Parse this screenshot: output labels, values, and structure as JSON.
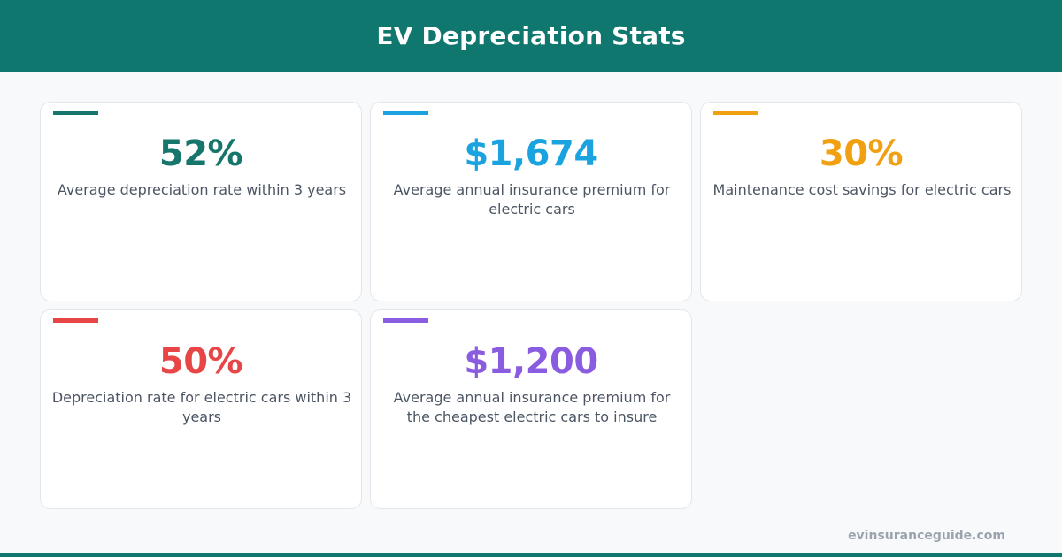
{
  "header": {
    "title": "EV Depreciation Stats"
  },
  "stats": [
    {
      "value": "52%",
      "label": "Average depreciation rate within 3 years",
      "color": "#16766c"
    },
    {
      "value": "$1,674",
      "label": "Average annual insurance premium for electric cars",
      "color": "#1aa3de"
    },
    {
      "value": "30%",
      "label": "Maintenance cost savings for electric cars",
      "color": "#f0a011"
    },
    {
      "value": "50%",
      "label": "Depreciation rate for electric cars within 3 years",
      "color": "#e84646"
    },
    {
      "value": "$1,200",
      "label": "Average annual insurance premium for the cheapest electric cars to insure",
      "color": "#8a5ce0"
    }
  ],
  "footer": {
    "url": "evinsuranceguide.com"
  },
  "colors": {
    "brand": "#10776e",
    "background": "#f7f9fa"
  }
}
